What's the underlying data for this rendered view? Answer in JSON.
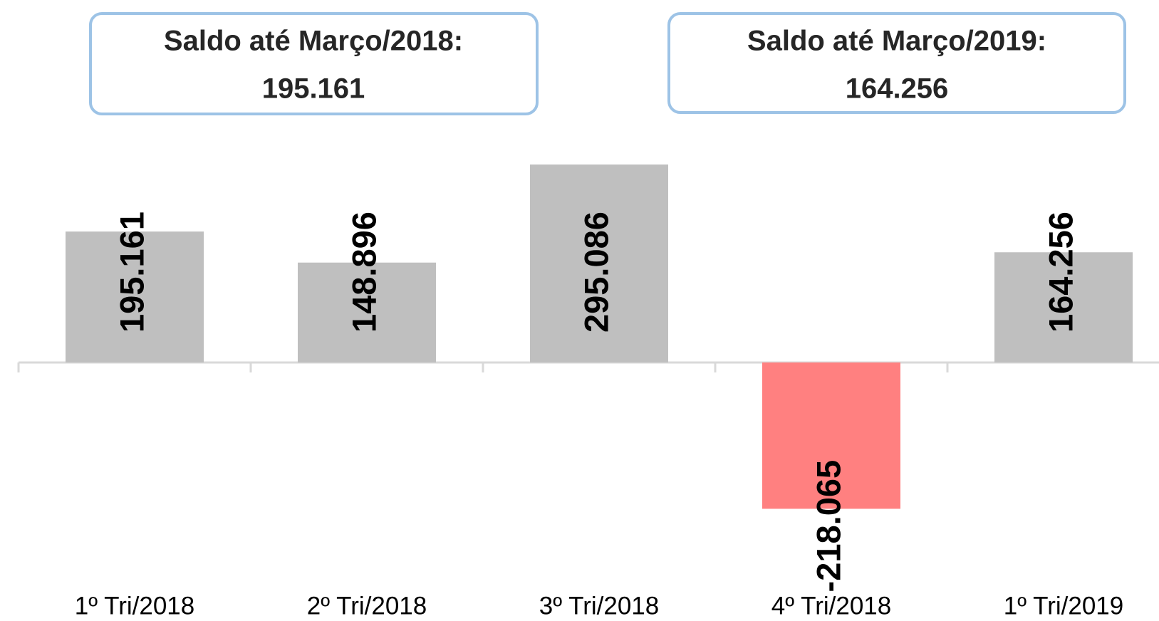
{
  "chart_data": {
    "type": "bar",
    "categories": [
      "1º Tri/2018",
      "2º Tri/2018",
      "3º Tri/2018",
      "4º Tri/2018",
      "1º Tri/2019"
    ],
    "values": [
      195161,
      148896,
      295086,
      -218065,
      164256
    ],
    "value_labels": [
      "195.161",
      "148.896",
      "295.086",
      "-218.065",
      "164.256"
    ],
    "colors": [
      "#bfbfbf",
      "#bfbfbf",
      "#bfbfbf",
      "#ff8080",
      "#bfbfbf"
    ],
    "annotations": [
      {
        "lines": [
          "Saldo até Março/2018:",
          "195.161"
        ]
      },
      {
        "lines": [
          "Saldo até Março/2019:",
          "164.256"
        ]
      }
    ]
  }
}
